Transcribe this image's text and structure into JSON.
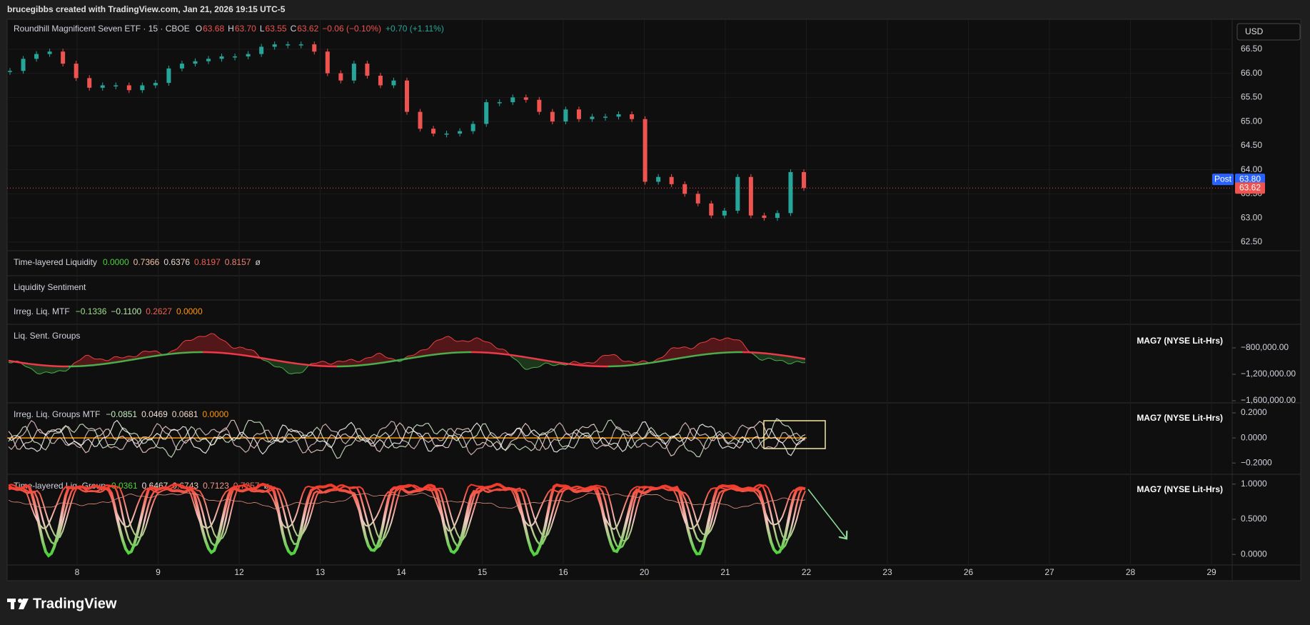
{
  "header": {
    "attribution": "brucegibbs created with TradingView.com, Jan 21, 2026 19:15 UTC-5"
  },
  "chart_data": {
    "type": "candlestick",
    "title": "Roundhill Magnificent Seven ETF · 15 · CBOE",
    "ohlc_labels": [
      "O",
      "H",
      "L",
      "C"
    ],
    "ohlc": [
      {
        "value": 63.68,
        "label": "63.68"
      },
      {
        "value": 63.7,
        "label": "63.70"
      },
      {
        "value": 63.55,
        "label": "63.55"
      },
      {
        "value": 63.62,
        "label": "63.62"
      }
    ],
    "change": "−0.06 (−0.10%)",
    "post_change": "+0.70 (+1.11%)",
    "currency": "USD",
    "post": {
      "label": "Post",
      "price": {
        "value": 63.8,
        "label": "63.80"
      }
    },
    "closes": [
      66.05,
      66.3,
      66.4,
      66.45,
      66.2,
      65.9,
      65.7,
      65.75,
      65.75,
      65.65,
      65.75,
      65.8,
      66.1,
      66.2,
      66.25,
      66.3,
      66.35,
      66.35,
      66.4,
      66.55,
      66.6,
      66.6,
      66.6,
      66.45,
      66.0,
      65.85,
      66.2,
      65.95,
      65.75,
      65.85,
      65.2,
      64.85,
      64.75,
      64.75,
      64.8,
      64.95,
      65.4,
      65.4,
      65.5,
      65.45,
      65.2,
      65.0,
      65.25,
      65.05,
      65.1,
      65.1,
      65.15,
      65.05,
      63.75,
      63.85,
      63.7,
      63.5,
      63.3,
      63.05,
      63.15,
      63.85,
      63.05,
      63.0,
      63.1,
      63.95,
      63.62
    ],
    "colors": {
      "up": "#26a69a",
      "down": "#ef5350"
    },
    "ylim": [
      62.32,
      67.12
    ],
    "yticks": [
      {
        "value": 66.5,
        "label": "66.50"
      },
      {
        "value": 66,
        "label": "66.00"
      },
      {
        "value": 65.5,
        "label": "65.50"
      },
      {
        "value": 65,
        "label": "65.00"
      },
      {
        "value": 64.5,
        "label": "64.50"
      },
      {
        "value": 64,
        "label": "64.00"
      },
      {
        "value": 63.5,
        "label": "63.50"
      },
      {
        "value": 63,
        "label": "63.00"
      },
      {
        "value": 62.5,
        "label": "62.50"
      }
    ],
    "x_labels": [
      "8",
      "9",
      "12",
      "13",
      "14",
      "15",
      "16",
      "20",
      "21",
      "22",
      "23",
      "26",
      "27",
      "28",
      "29"
    ],
    "grid": true
  },
  "panes": [
    {
      "title": "Time-layered Liquidity",
      "values": [
        "0.0000",
        "0.7366",
        "0.6376",
        "0.8197",
        "0.8157",
        "ø"
      ]
    },
    {
      "title": "Liquidity Sentiment",
      "values": []
    },
    {
      "title": "Irreg. Liq. MTF",
      "values": [
        "−0.1336",
        "−0.1100",
        "0.2627",
        "0.0000"
      ]
    },
    {
      "title": "Liq. Sent. Groups",
      "values": [],
      "symbol": "MAG7 (NYSE Lit-Hrs)",
      "ylim": [
        -1632000,
        -443000
      ],
      "yticks": [
        {
          "value": -800000,
          "label": "−800,000.00"
        },
        {
          "value": -1200000,
          "label": "−1,200,000.00"
        },
        {
          "value": -1600000,
          "label": "−1,600,000.00"
        }
      ]
    },
    {
      "title": "Irreg. Liq. Groups MTF",
      "values": [
        "−0.0851",
        "0.0469",
        "0.0681",
        "0.0000"
      ],
      "symbol": "MAG7 (NYSE Lit-Hrs)",
      "ylim": [
        -0.29,
        0.28
      ],
      "yticks": [
        {
          "value": 0.2,
          "label": "0.2000"
        },
        {
          "value": 0,
          "label": "0.0000"
        },
        {
          "value": -0.2,
          "label": "−0.2000"
        }
      ]
    },
    {
      "title": "Time-layered Liq. Group",
      "values": [
        "0.0361",
        "0.6467",
        "0.6743",
        "0.7123",
        "0.7257",
        "ø"
      ],
      "symbol": "MAG7 (NYSE Lit-Hrs)",
      "ylim": [
        -0.15,
        1.14
      ],
      "yticks": [
        {
          "value": 1,
          "label": "1.0000"
        },
        {
          "value": 0.5,
          "label": "0.5000"
        },
        {
          "value": 0,
          "label": "0.0000"
        }
      ]
    }
  ],
  "footer": {
    "logo": "TradingView"
  }
}
